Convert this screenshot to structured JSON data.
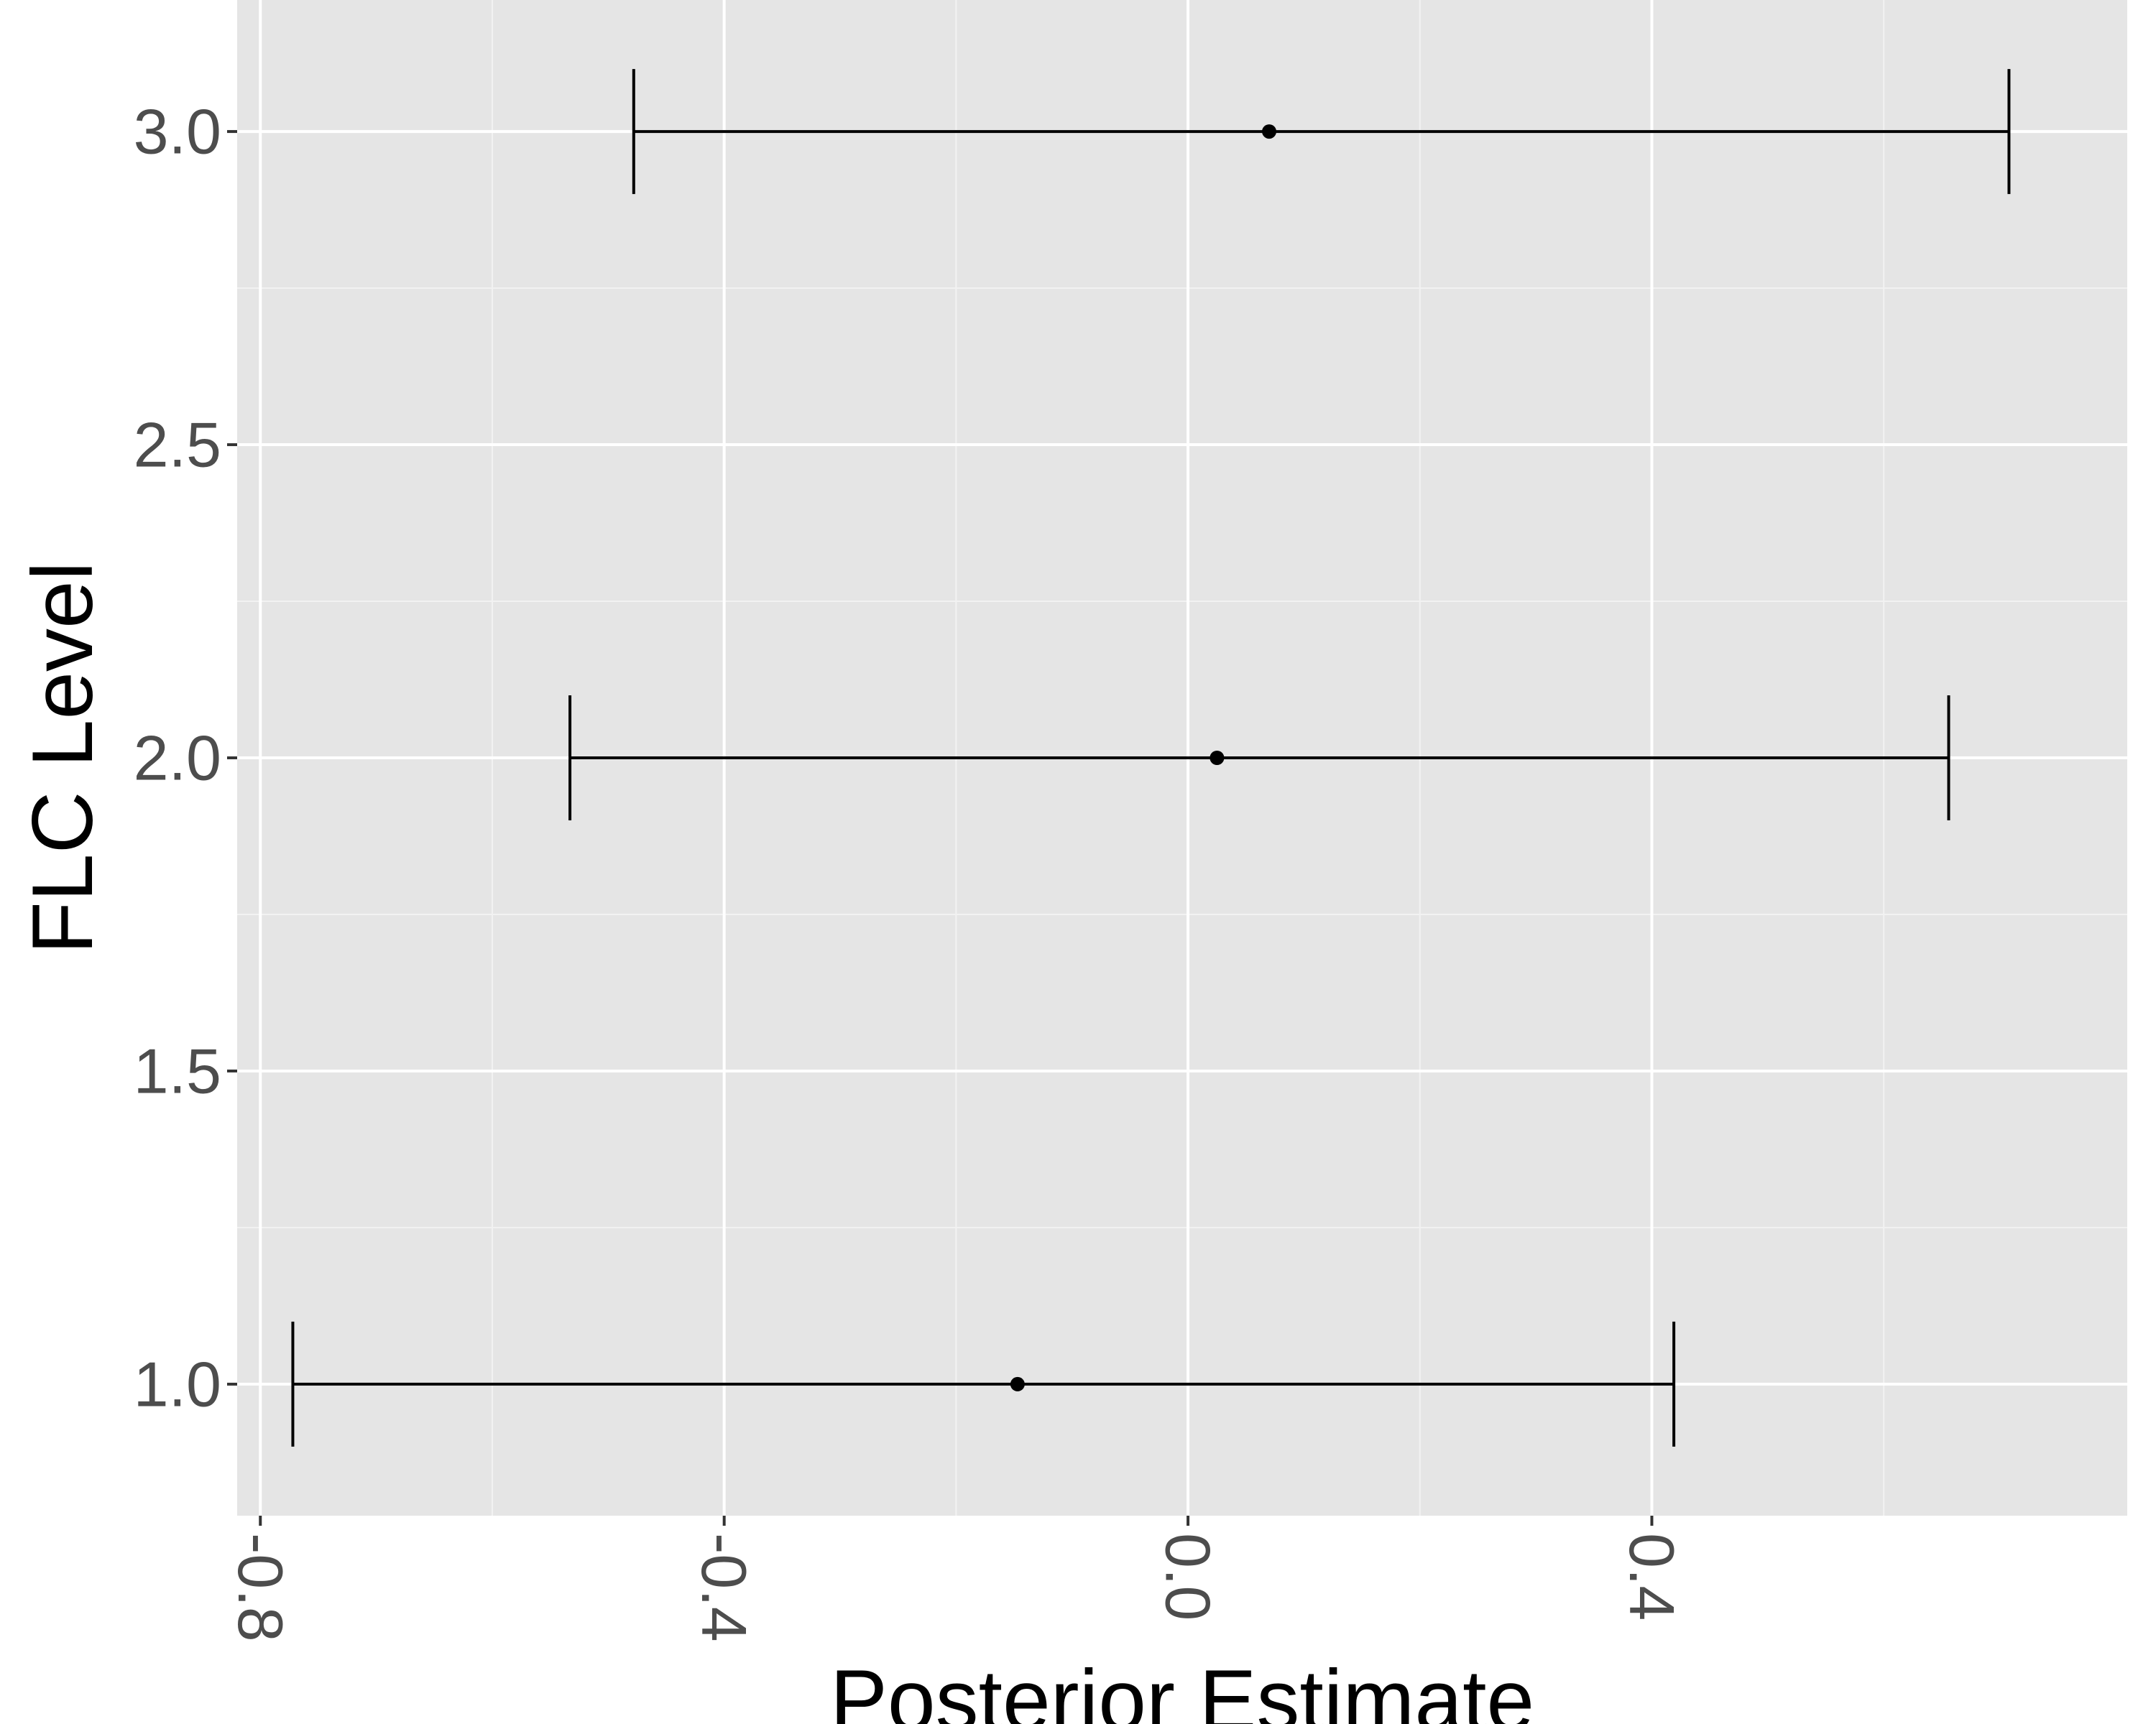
{
  "chart_data": {
    "type": "errorbar",
    "xlabel": "Posterior Estimate",
    "ylabel": "FLC Level",
    "xlim": [
      -0.82,
      0.81
    ],
    "ylim": [
      0.79,
      3.21
    ],
    "x_ticks": [
      -0.8,
      -0.4,
      0.0,
      0.4
    ],
    "x_tick_labels": [
      "-0.8",
      "-0.4",
      "0.0",
      "0.4"
    ],
    "x_minor_ticks": [
      -0.6,
      -0.2,
      0.2,
      0.6
    ],
    "y_ticks": [
      1.0,
      1.5,
      2.0,
      2.5,
      3.0
    ],
    "y_tick_labels": [
      "1.0",
      "1.5",
      "2.0",
      "2.5",
      "3.0"
    ],
    "y_minor_ticks": [
      1.25,
      1.75,
      2.25,
      2.75
    ],
    "x_tick_label_rotation": -90,
    "grid": true,
    "legend": "none",
    "points": [
      {
        "y": 1.0,
        "estimate": -0.147,
        "lower": -0.772,
        "upper": 0.419
      },
      {
        "y": 2.0,
        "estimate": 0.025,
        "lower": -0.533,
        "upper": 0.656
      },
      {
        "y": 3.0,
        "estimate": 0.07,
        "lower": -0.478,
        "upper": 0.708
      }
    ],
    "colors": {
      "panel_background": "#E5E5E5",
      "grid_major": "#FFFFFF",
      "grid_minor": "#F2F2F2",
      "mark": "#000000",
      "tick_text": "#4D4D4D",
      "title_text": "#000000"
    }
  }
}
